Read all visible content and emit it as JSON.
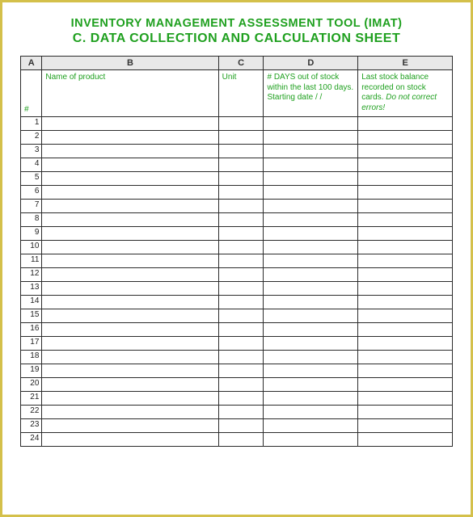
{
  "title": {
    "line1": "INVENTORY MANAGEMENT ASSESSMENT TOOL (IMAT)",
    "line2": "C. DATA COLLECTION AND CALCULATION SHEET"
  },
  "columns": {
    "letters": [
      "A",
      "B",
      "C",
      "D",
      "E"
    ],
    "headers": {
      "a": "#",
      "b": "Name of product",
      "c": "Unit",
      "d_line1": "# DAYS out of stock within the last 100 days.",
      "d_line2": "Starting date    /   /",
      "e_line1": "Last stock balance recorded on stock cards. ",
      "e_italic": "Do not correct errors!"
    }
  },
  "rows": [
    "1",
    "2",
    "3",
    "4",
    "5",
    "6",
    "7",
    "8",
    "9",
    "10",
    "11",
    "12",
    "13",
    "14",
    "15",
    "16",
    "17",
    "18",
    "19",
    "20",
    "21",
    "22",
    "23",
    "24"
  ],
  "colors": {
    "border": "#d4c04a",
    "green": "#1fa01f",
    "grid": "#2b2b2b",
    "letter_bg": "#e8e8e8"
  }
}
